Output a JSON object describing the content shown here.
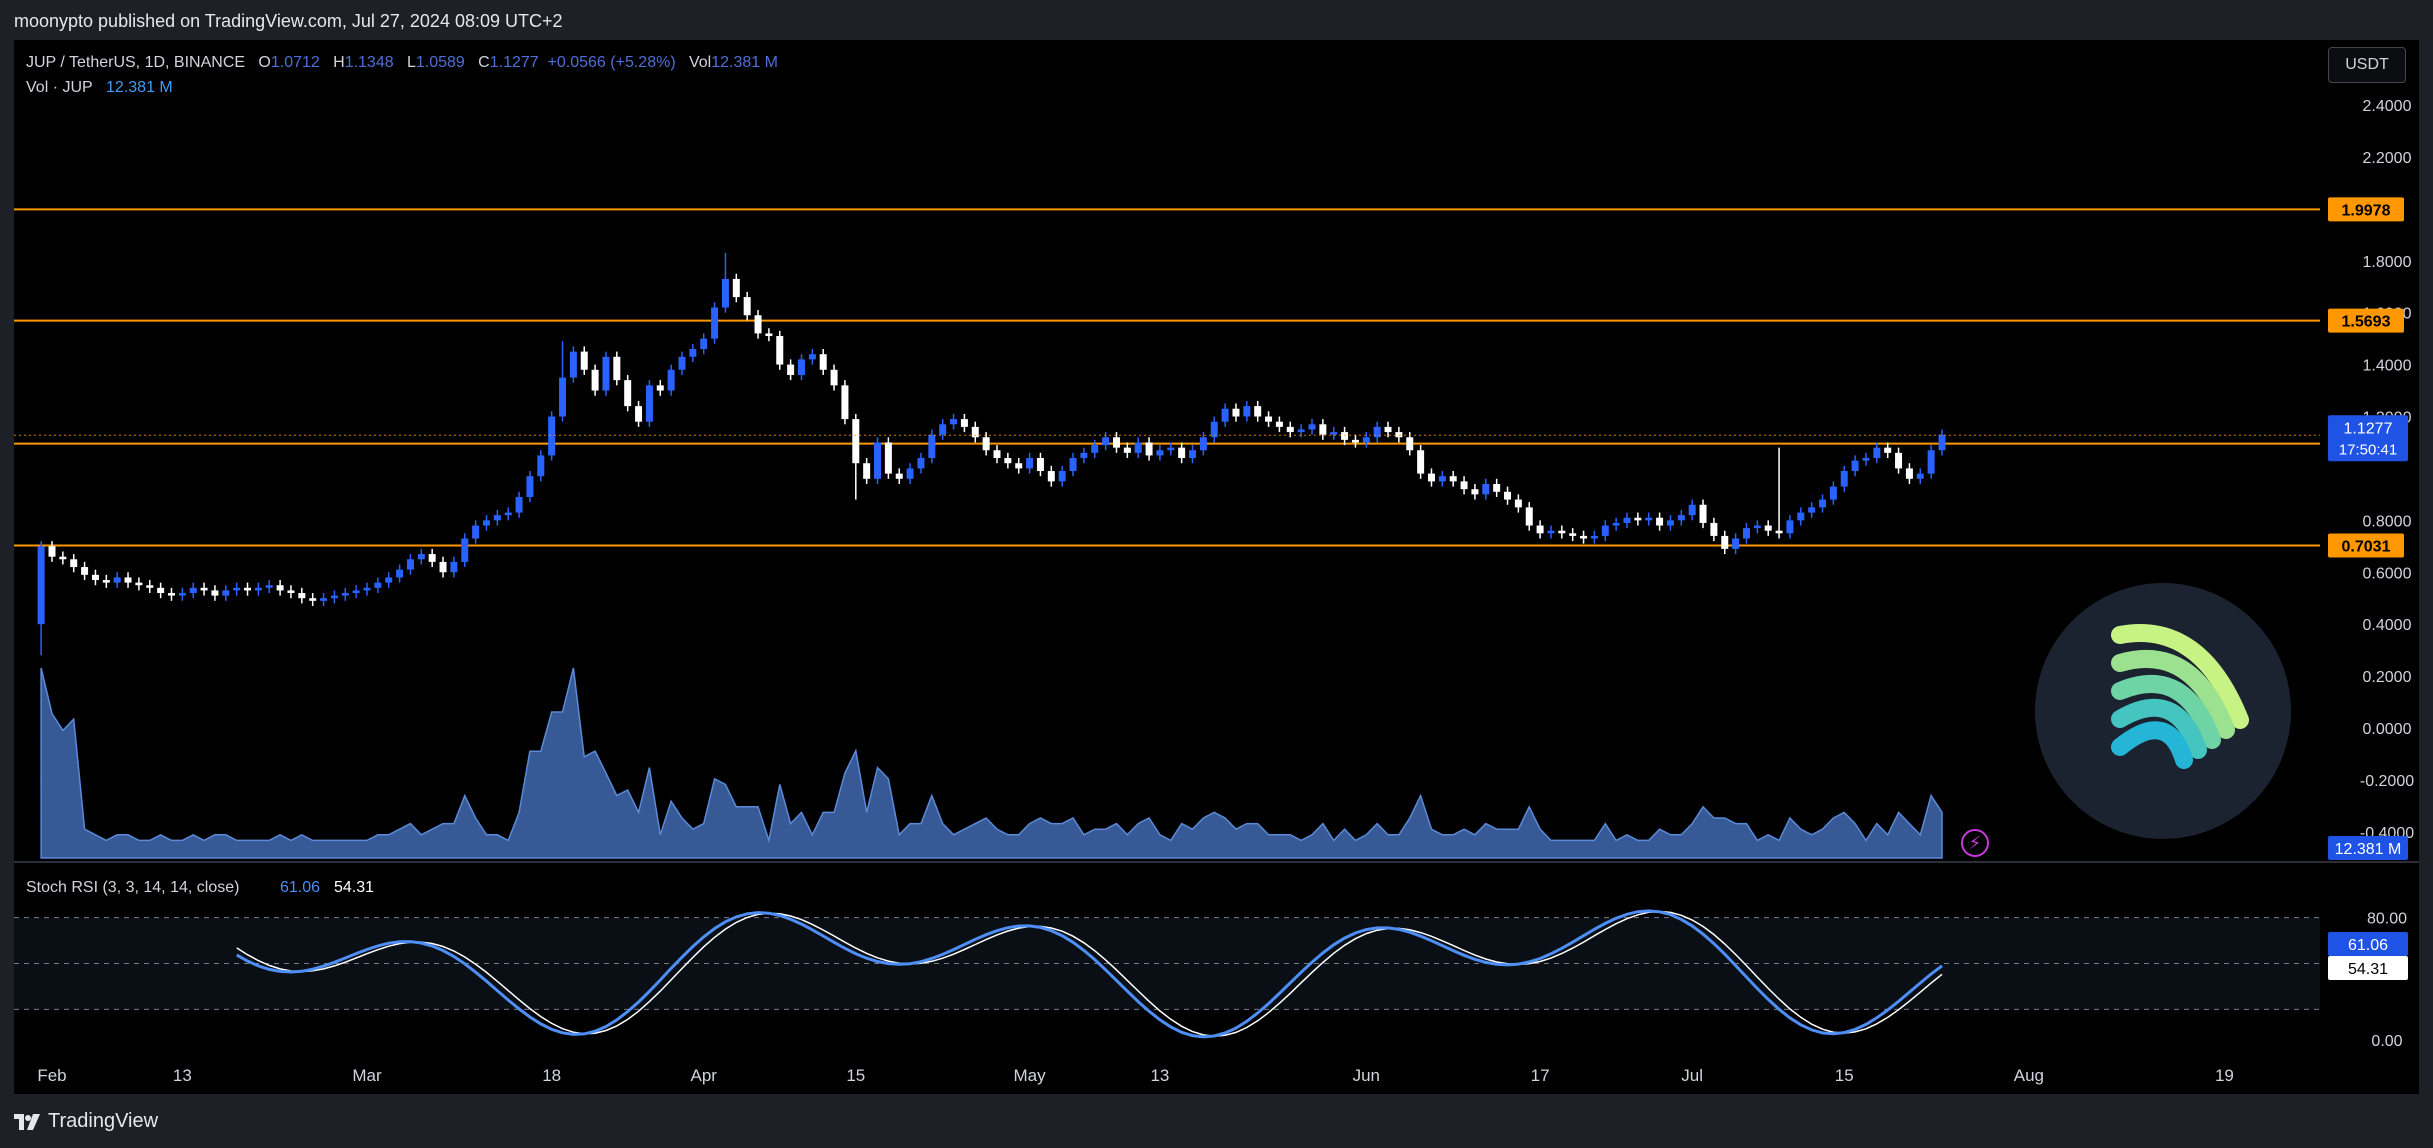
{
  "header": {
    "published_by": "moonypto published on TradingView.com, Jul 27, 2024 08:09 UTC+2"
  },
  "legend": {
    "symbol": "JUP / TetherUS, 1D, BINANCE",
    "o_label": "O",
    "o": "1.0712",
    "h_label": "H",
    "h": "1.1348",
    "l_label": "L",
    "l": "1.0589",
    "c_label": "C",
    "c": "1.1277",
    "change": "+0.0566 (+5.28%)",
    "vol_label": "Vol",
    "vol": "12.381 M",
    "vol_line_label": "Vol · JUP",
    "vol_line_value": "12.381 M"
  },
  "currency_button": "USDT",
  "footer": {
    "brand": "TradingView"
  },
  "colors": {
    "up_candle": "#2962ff",
    "down_candle": "#ffffff",
    "horizontal_line": "#ff9800",
    "volume": "#4a78c8",
    "stoch_k": "#4e8ef7",
    "stoch_d": "#ffffff",
    "price_label_bg": "#1e53e5"
  },
  "chart_data": [
    {
      "type": "candlestick",
      "title": "JUP / TetherUS, 1D, BINANCE",
      "x_tick_labels": [
        "Feb",
        "13",
        "Mar",
        "18",
        "Apr",
        "15",
        "May",
        "13",
        "Jun",
        "17",
        "Jul",
        "15",
        "Aug",
        "19"
      ],
      "x_ticks": [
        "2024-02-01",
        "2024-02-13",
        "2024-03-01",
        "2024-03-18",
        "2024-04-01",
        "2024-04-15",
        "2024-05-01",
        "2024-05-13",
        "2024-06-01",
        "2024-06-17",
        "2024-07-01",
        "2024-07-15",
        "2024-08-01",
        "2024-08-19"
      ],
      "y_ticks": [
        "2.4000",
        "2.2000",
        "1.8000",
        "1.6000",
        "1.4000",
        "1.2000",
        "0.8000",
        "0.6000",
        "0.4000",
        "0.2000",
        "0.0000",
        "-0.2000",
        "-0.4000"
      ],
      "ylim": [
        -0.4,
        2.4
      ],
      "horizontal_lines": [
        {
          "value": 1.9978,
          "label": "1.9978"
        },
        {
          "value": 1.5693,
          "label": "1.5693"
        },
        {
          "value": 1.0953,
          "label": "1.0953"
        },
        {
          "value": 0.7031,
          "label": "0.7031"
        }
      ],
      "current_price": {
        "value": 1.1277,
        "label": "1.1277",
        "countdown": "17:50:41"
      },
      "closes_start_date": "2024-01-31",
      "closes": [
        0.7,
        0.66,
        0.65,
        0.62,
        0.59,
        0.57,
        0.56,
        0.58,
        0.56,
        0.55,
        0.54,
        0.52,
        0.51,
        0.52,
        0.54,
        0.53,
        0.51,
        0.53,
        0.54,
        0.53,
        0.54,
        0.55,
        0.53,
        0.52,
        0.5,
        0.49,
        0.5,
        0.51,
        0.52,
        0.53,
        0.54,
        0.56,
        0.58,
        0.61,
        0.65,
        0.67,
        0.64,
        0.6,
        0.64,
        0.73,
        0.78,
        0.8,
        0.82,
        0.83,
        0.89,
        0.97,
        1.05,
        1.2,
        1.35,
        1.45,
        1.38,
        1.3,
        1.43,
        1.34,
        1.24,
        1.18,
        1.32,
        1.3,
        1.38,
        1.43,
        1.46,
        1.5,
        1.62,
        1.73,
        1.66,
        1.59,
        1.52,
        1.51,
        1.4,
        1.36,
        1.42,
        1.44,
        1.38,
        1.32,
        1.19,
        1.02,
        0.96,
        1.1,
        0.98,
        0.96,
        1.0,
        1.04,
        1.13,
        1.17,
        1.19,
        1.16,
        1.12,
        1.07,
        1.04,
        1.02,
        1.0,
        1.04,
        0.99,
        0.95,
        0.99,
        1.04,
        1.06,
        1.09,
        1.12,
        1.08,
        1.06,
        1.1,
        1.05,
        1.07,
        1.08,
        1.04,
        1.07,
        1.12,
        1.18,
        1.23,
        1.2,
        1.24,
        1.2,
        1.18,
        1.16,
        1.14,
        1.15,
        1.17,
        1.13,
        1.14,
        1.11,
        1.1,
        1.12,
        1.16,
        1.14,
        1.12,
        1.07,
        0.98,
        0.95,
        0.97,
        0.95,
        0.92,
        0.9,
        0.94,
        0.91,
        0.88,
        0.85,
        0.78,
        0.75,
        0.76,
        0.75,
        0.74,
        0.73,
        0.74,
        0.78,
        0.79,
        0.81,
        0.8,
        0.81,
        0.78,
        0.8,
        0.82,
        0.86,
        0.79,
        0.74,
        0.69,
        0.73,
        0.77,
        0.78,
        0.76,
        0.75,
        0.8,
        0.83,
        0.85,
        0.88,
        0.93,
        0.99,
        1.03,
        1.04,
        1.08,
        1.06,
        1.0,
        0.96,
        0.98,
        1.07,
        1.13
      ],
      "stoch_rsi": {
        "label": "Stoch RSI (3, 3, 14, 14, close)",
        "k_value": "61.06",
        "d_value": "54.31",
        "ylim": [
          0,
          100
        ],
        "y_ticks": [
          "80.00",
          "0.00"
        ],
        "bands": [
          80,
          50,
          20
        ]
      },
      "volume": {
        "label": "Vol · JUP",
        "last": "12.381 M"
      }
    }
  ]
}
